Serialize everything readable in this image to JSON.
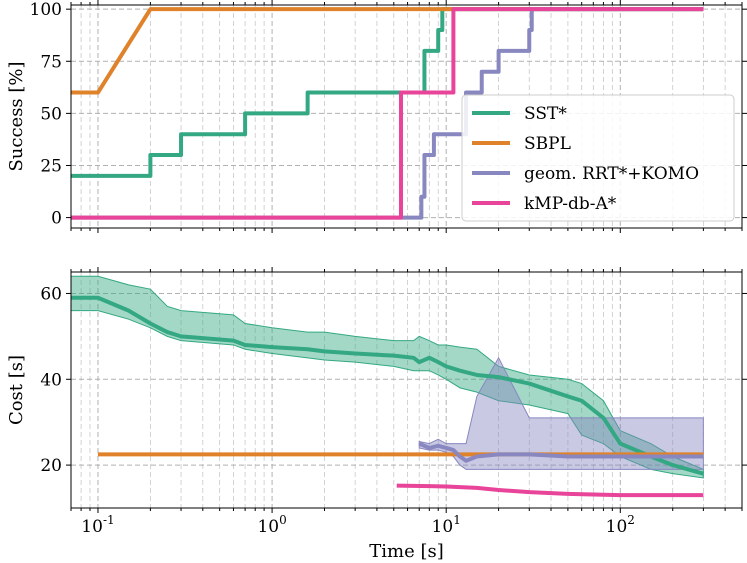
{
  "colors": {
    "sst": "#33a883",
    "sbpl": "#e0822a",
    "geom": "#8887c0",
    "kmp": "#e8449a"
  },
  "chart_data": [
    {
      "type": "line",
      "title": "",
      "xlabel": "",
      "ylabel": "Success [%]",
      "xscale": "log",
      "xlim": [
        0.07,
        500
      ],
      "ylim": [
        -5,
        102
      ],
      "yticks": [
        0,
        25,
        50,
        75,
        100
      ],
      "ytick_labels": [
        "0",
        "25",
        "50",
        "75",
        "100"
      ],
      "grid": true,
      "legend_position": "center-right",
      "series": [
        {
          "name": "SST*",
          "color_key": "sst",
          "step": true,
          "x": [
            0.07,
            0.1,
            0.2,
            0.3,
            0.6,
            0.7,
            1.6,
            6.5,
            7.5,
            9,
            9.5
          ],
          "y": [
            20,
            20,
            30,
            40,
            40,
            50,
            60,
            60,
            80,
            90,
            100
          ]
        },
        {
          "name": "SBPL",
          "color_key": "sbpl",
          "step": false,
          "x": [
            0.07,
            0.1,
            0.2,
            300
          ],
          "y": [
            60,
            60,
            100,
            100
          ]
        },
        {
          "name": "geom. RRT*+KOMO",
          "color_key": "geom",
          "step": true,
          "x": [
            0.07,
            7,
            7.2,
            7.5,
            8.5,
            13,
            16,
            20,
            30,
            31
          ],
          "y": [
            0,
            0,
            10,
            30,
            40,
            60,
            70,
            80,
            90,
            100
          ]
        },
        {
          "name": "kMP-db-A*",
          "color_key": "kmp",
          "step": true,
          "x": [
            0.07,
            5.2,
            5.5,
            10.2,
            11,
            300
          ],
          "y": [
            0,
            0,
            60,
            60,
            100,
            100
          ]
        }
      ]
    },
    {
      "type": "line",
      "title": "",
      "xlabel": "Time [s]",
      "ylabel": "Cost [s]",
      "xscale": "log",
      "xlim": [
        0.07,
        500
      ],
      "ylim": [
        10,
        65
      ],
      "yticks": [
        20,
        40,
        60
      ],
      "ytick_labels": [
        "20",
        "40",
        "60"
      ],
      "xticks": [
        0.1,
        1,
        10,
        100
      ],
      "grid": true,
      "series": [
        {
          "name": "SST*",
          "color_key": "sst",
          "x": [
            0.07,
            0.1,
            0.15,
            0.2,
            0.25,
            0.3,
            0.6,
            0.7,
            1,
            1.6,
            2,
            3,
            5,
            6.5,
            7,
            8,
            9,
            10,
            12,
            15,
            20,
            30,
            50,
            60,
            80,
            100,
            150,
            200,
            300
          ],
          "y": [
            59,
            59,
            56,
            53,
            51,
            50,
            49,
            48,
            47.5,
            47,
            46.5,
            46,
            45.5,
            45,
            44,
            45,
            44,
            43,
            42,
            41,
            40.5,
            39,
            36,
            35,
            31,
            25,
            22,
            20,
            18
          ],
          "band_upper": [
            64,
            64,
            62,
            61,
            57,
            56,
            55,
            53,
            52,
            51,
            51,
            50,
            49,
            49,
            50,
            49,
            48,
            48,
            47.5,
            47,
            43,
            41,
            40,
            39,
            35,
            28,
            25,
            22,
            19
          ],
          "band_lower": [
            56,
            56,
            54,
            52,
            50,
            49,
            48,
            47,
            46,
            45,
            44.5,
            44,
            43,
            42,
            42,
            42,
            41,
            40,
            38,
            37,
            35,
            34,
            32,
            27,
            25,
            22,
            19,
            18,
            17
          ]
        },
        {
          "name": "SBPL",
          "color_key": "sbpl",
          "x": [
            0.1,
            300
          ],
          "y": [
            22.5,
            22.5
          ]
        },
        {
          "name": "geom. RRT*+KOMO",
          "color_key": "geom",
          "x": [
            7,
            8,
            9,
            10,
            11,
            12,
            13,
            15,
            20,
            30,
            50,
            100,
            200,
            300
          ],
          "y": [
            25,
            24,
            24.5,
            24,
            23.5,
            22,
            21,
            22,
            22.5,
            22.5,
            22,
            22,
            22,
            22
          ],
          "band_upper": [
            25.5,
            25,
            26,
            25,
            25,
            25,
            25,
            36,
            45,
            31,
            31,
            31,
            31,
            31
          ],
          "band_lower": [
            24,
            23.5,
            23.5,
            23,
            22,
            20,
            19,
            19,
            19,
            19,
            19,
            19,
            19,
            19
          ]
        },
        {
          "name": "kMP-db-A*",
          "color_key": "kmp",
          "x": [
            5.2,
            8,
            10,
            15,
            20,
            30,
            50,
            80,
            100,
            200,
            300
          ],
          "y": [
            15.2,
            15.1,
            15,
            14.7,
            14.2,
            13.7,
            13.3,
            13.1,
            13,
            13,
            13
          ]
        }
      ]
    }
  ]
}
